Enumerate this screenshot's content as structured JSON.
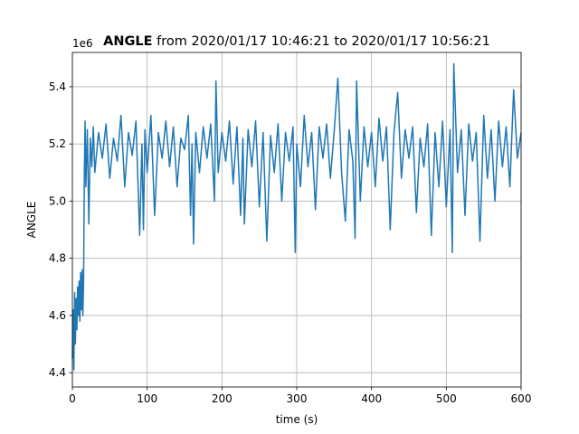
{
  "chart_data": {
    "type": "line",
    "title": {
      "bold_part": "ANGLE",
      "rest": " from 2020/01/17 10:46:21 to 2020/01/17 10:56:21"
    },
    "xlabel": "time (s)",
    "ylabel": "ANGLE",
    "y_offset_label": "1e6",
    "xlim": [
      0,
      600
    ],
    "ylim": [
      4.35,
      5.52
    ],
    "x_ticks": [
      0,
      100,
      200,
      300,
      400,
      500,
      600
    ],
    "x_tick_labels": [
      "0",
      "100",
      "200",
      "300",
      "400",
      "500",
      "600"
    ],
    "y_ticks": [
      4.4,
      4.6,
      4.8,
      5.0,
      5.2,
      5.4
    ],
    "y_tick_labels": [
      "4.4",
      "4.6",
      "4.8",
      "5.0",
      "5.2",
      "5.4"
    ],
    "grid": true,
    "color": "#1f77b4",
    "series": [
      {
        "values": {
          "x": [
            0,
            1,
            2,
            3,
            4,
            5,
            6,
            7,
            8,
            9,
            10,
            11,
            12,
            13,
            14,
            15,
            16,
            17,
            18,
            20,
            22,
            24,
            26,
            28,
            30,
            35,
            40,
            45,
            50,
            55,
            60,
            65,
            70,
            75,
            80,
            85,
            90,
            93,
            95,
            97,
            100,
            105,
            110,
            115,
            120,
            125,
            130,
            135,
            140,
            145,
            150,
            155,
            158,
            160,
            162,
            165,
            170,
            175,
            180,
            185,
            190,
            192,
            195,
            200,
            205,
            210,
            215,
            220,
            225,
            228,
            230,
            235,
            240,
            245,
            250,
            255,
            260,
            265,
            270,
            275,
            280,
            285,
            290,
            295,
            298,
            300,
            305,
            310,
            315,
            320,
            325,
            330,
            335,
            340,
            345,
            350,
            355,
            360,
            365,
            370,
            375,
            378,
            380,
            385,
            390,
            395,
            400,
            405,
            410,
            415,
            420,
            425,
            430,
            435,
            440,
            445,
            450,
            455,
            460,
            465,
            470,
            475,
            480,
            485,
            490,
            495,
            500,
            505,
            508,
            510,
            515,
            520,
            525,
            530,
            535,
            540,
            545,
            550,
            555,
            560,
            565,
            570,
            575,
            580,
            585,
            590,
            595,
            600
          ],
          "y": [
            4.45,
            4.62,
            4.41,
            4.68,
            4.5,
            4.66,
            4.55,
            4.7,
            4.6,
            4.72,
            4.58,
            4.75,
            4.62,
            4.76,
            4.6,
            4.72,
            5.1,
            5.28,
            5.05,
            5.25,
            4.92,
            5.22,
            5.12,
            5.26,
            5.1,
            5.24,
            5.15,
            5.27,
            5.08,
            5.22,
            5.14,
            5.3,
            5.05,
            5.24,
            5.16,
            5.28,
            4.88,
            5.2,
            4.9,
            5.25,
            5.1,
            5.3,
            4.95,
            5.24,
            5.15,
            5.28,
            5.12,
            5.26,
            5.05,
            5.22,
            5.18,
            5.3,
            4.95,
            5.2,
            4.85,
            5.24,
            5.1,
            5.26,
            5.15,
            5.27,
            5.0,
            5.42,
            5.1,
            5.24,
            5.14,
            5.28,
            5.06,
            5.26,
            4.95,
            5.22,
            4.92,
            5.25,
            5.12,
            5.28,
            4.98,
            5.24,
            4.86,
            5.23,
            5.1,
            5.27,
            5.0,
            5.24,
            5.14,
            5.26,
            4.82,
            5.2,
            5.05,
            5.3,
            5.12,
            5.24,
            4.97,
            5.26,
            5.15,
            5.27,
            5.08,
            5.24,
            5.43,
            5.1,
            4.93,
            5.25,
            5.14,
            4.87,
            5.42,
            5.0,
            5.26,
            5.12,
            5.24,
            5.05,
            5.29,
            5.14,
            5.26,
            4.9,
            5.24,
            5.38,
            5.08,
            5.25,
            5.15,
            5.26,
            4.96,
            5.22,
            5.12,
            5.27,
            4.88,
            5.24,
            5.05,
            5.28,
            4.98,
            5.25,
            4.82,
            5.48,
            5.1,
            5.25,
            4.95,
            5.27,
            5.14,
            5.24,
            4.86,
            5.3,
            5.08,
            5.25,
            5.0,
            5.28,
            5.12,
            5.26,
            5.05,
            5.39,
            5.15,
            5.24
          ]
        }
      }
    ]
  }
}
